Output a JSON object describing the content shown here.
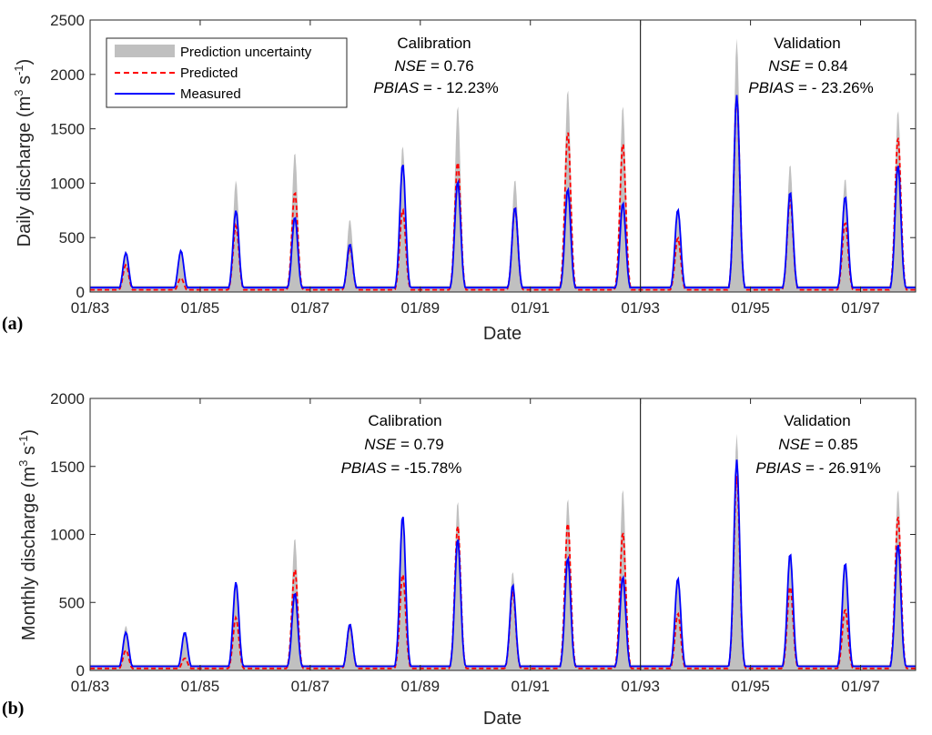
{
  "colors": {
    "band": "#c0c0c0",
    "predicted": "#ff0000",
    "measured": "#0000ff",
    "axis": "#262626"
  },
  "legend": {
    "band": "Prediction uncertainty",
    "predicted": "Predicted",
    "measured": "Measured"
  },
  "chart_data": [
    {
      "type": "area",
      "panel_label": "(a)",
      "title": "",
      "xlabel": "Date",
      "ylabel_main": "Daily discharge (m",
      "ylabel_sup1": "3",
      "ylabel_mid": " s",
      "ylabel_sup2": "-1",
      "ylabel_end": ")",
      "xlim": [
        1983.0,
        1998.0
      ],
      "ylim": [
        0,
        2500
      ],
      "yticks": [
        0,
        500,
        1000,
        1500,
        2000,
        2500
      ],
      "xticks": [
        {
          "value": 1983.0,
          "label": "01/83"
        },
        {
          "value": 1985.0,
          "label": "01/85"
        },
        {
          "value": 1987.0,
          "label": "01/87"
        },
        {
          "value": 1989.0,
          "label": "01/89"
        },
        {
          "value": 1991.0,
          "label": "01/91"
        },
        {
          "value": 1993.0,
          "label": "01/93"
        },
        {
          "value": 1995.0,
          "label": "01/95"
        },
        {
          "value": 1997.0,
          "label": "01/97"
        }
      ],
      "divider_x": 1993.0,
      "grid": false,
      "legend_position": "top-left",
      "annotations": [
        {
          "region": "calibration",
          "title": "Calibration",
          "nse": "0.76",
          "pbias": "- 12.23%"
        },
        {
          "region": "validation",
          "title": "Validation",
          "nse": "0.84",
          "pbias": "- 23.26%"
        }
      ],
      "base": 40,
      "peaks": [
        {
          "t": 1983.65,
          "measured": 360,
          "predicted": 250,
          "upper": 380
        },
        {
          "t": 1984.65,
          "measured": 380,
          "predicted": 130,
          "upper": 280
        },
        {
          "t": 1985.65,
          "measured": 750,
          "predicted": 610,
          "upper": 1030
        },
        {
          "t": 1986.72,
          "measured": 690,
          "predicted": 920,
          "upper": 1290
        },
        {
          "t": 1987.72,
          "measured": 440,
          "predicted": 410,
          "upper": 670
        },
        {
          "t": 1988.68,
          "measured": 1180,
          "predicted": 760,
          "upper": 1350
        },
        {
          "t": 1989.68,
          "measured": 1020,
          "predicted": 1200,
          "upper": 1720
        },
        {
          "t": 1990.72,
          "measured": 780,
          "predicted": 780,
          "upper": 1040
        },
        {
          "t": 1991.68,
          "measured": 950,
          "predicted": 1480,
          "upper": 1870
        },
        {
          "t": 1992.68,
          "measured": 820,
          "predicted": 1370,
          "upper": 1720
        },
        {
          "t": 1993.68,
          "measured": 760,
          "predicted": 500,
          "upper": 720
        },
        {
          "t": 1994.75,
          "measured": 1810,
          "predicted": 1800,
          "upper": 2330
        },
        {
          "t": 1995.72,
          "measured": 920,
          "predicted": 860,
          "upper": 1180
        },
        {
          "t": 1996.72,
          "measured": 880,
          "predicted": 640,
          "upper": 1050
        },
        {
          "t": 1997.68,
          "measured": 1170,
          "predicted": 1430,
          "upper": 1680
        }
      ]
    },
    {
      "type": "area",
      "panel_label": "(b)",
      "title": "",
      "xlabel": "Date",
      "ylabel_main": "Monthly discharge (m",
      "ylabel_sup1": "3",
      "ylabel_mid": " s",
      "ylabel_sup2": "-1",
      "ylabel_end": ")",
      "xlim": [
        1983.0,
        1998.0
      ],
      "ylim": [
        0,
        2000
      ],
      "yticks": [
        0,
        500,
        1000,
        1500,
        2000
      ],
      "xticks": [
        {
          "value": 1983.0,
          "label": "01/83"
        },
        {
          "value": 1985.0,
          "label": "01/85"
        },
        {
          "value": 1987.0,
          "label": "01/87"
        },
        {
          "value": 1989.0,
          "label": "01/89"
        },
        {
          "value": 1991.0,
          "label": "01/91"
        },
        {
          "value": 1993.0,
          "label": "01/93"
        },
        {
          "value": 1995.0,
          "label": "01/95"
        },
        {
          "value": 1997.0,
          "label": "01/97"
        }
      ],
      "divider_x": 1993.0,
      "grid": false,
      "annotations": [
        {
          "region": "calibration",
          "title": "Calibration",
          "nse": "0.79",
          "pbias": "-15.78%"
        },
        {
          "region": "validation",
          "title": "Validation",
          "nse": "0.85",
          "pbias": "- 26.91%"
        }
      ],
      "base": 30,
      "peaks": [
        {
          "t": 1983.65,
          "measured": 280,
          "predicted": 150,
          "upper": 330
        },
        {
          "t": 1984.72,
          "measured": 280,
          "predicted": 90,
          "upper": 200
        },
        {
          "t": 1985.65,
          "measured": 650,
          "predicted": 390,
          "upper": 560
        },
        {
          "t": 1986.72,
          "measured": 570,
          "predicted": 750,
          "upper": 980
        },
        {
          "t": 1987.72,
          "measured": 340,
          "predicted": 330,
          "upper": 350
        },
        {
          "t": 1988.68,
          "measured": 1140,
          "predicted": 710,
          "upper": 1000
        },
        {
          "t": 1989.68,
          "measured": 970,
          "predicted": 1070,
          "upper": 1250
        },
        {
          "t": 1990.68,
          "measured": 630,
          "predicted": 580,
          "upper": 730
        },
        {
          "t": 1991.68,
          "measured": 830,
          "predicted": 1090,
          "upper": 1270
        },
        {
          "t": 1992.68,
          "measured": 690,
          "predicted": 1020,
          "upper": 1340
        },
        {
          "t": 1993.68,
          "measured": 680,
          "predicted": 420,
          "upper": 620
        },
        {
          "t": 1994.75,
          "measured": 1550,
          "predicted": 1430,
          "upper": 1740
        },
        {
          "t": 1995.72,
          "measured": 860,
          "predicted": 620,
          "upper": 830
        },
        {
          "t": 1996.72,
          "measured": 790,
          "predicted": 450,
          "upper": 600
        },
        {
          "t": 1997.68,
          "measured": 930,
          "predicted": 1140,
          "upper": 1340
        }
      ]
    }
  ]
}
